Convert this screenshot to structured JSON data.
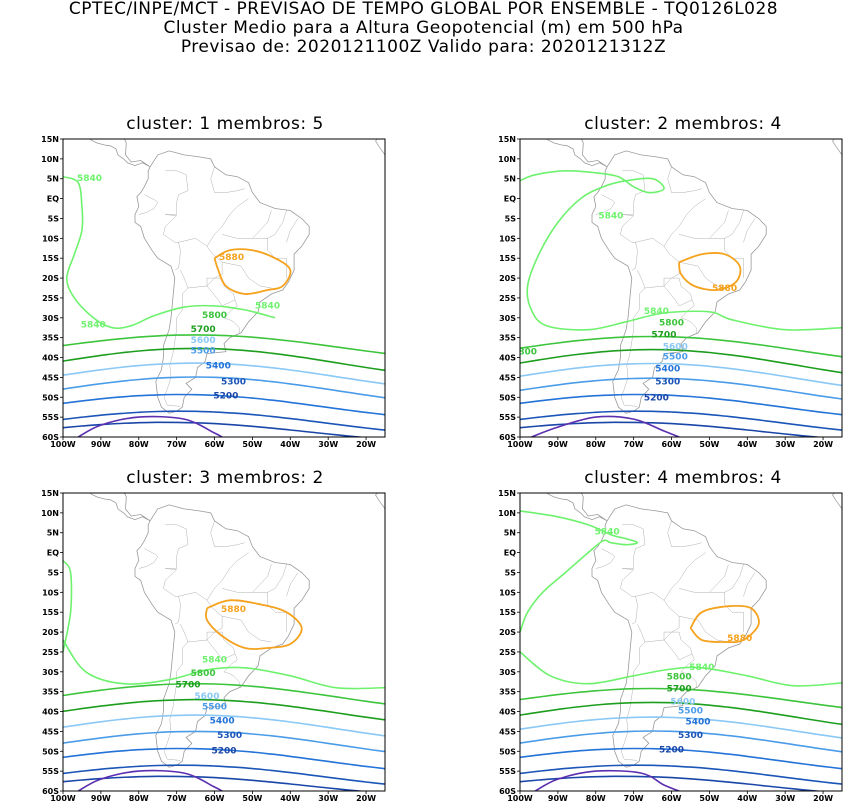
{
  "header": {
    "line1": "CPTEC/INPE/MCT - PREVISAO DE TEMPO GLOBAL POR ENSEMBLE - TQ0126L028",
    "line2": "Cluster Medio para a Altura Geopotencial (m) em 500 hPa",
    "line3": "Previsao de: 2020121100Z   Valido para: 2020121312Z"
  },
  "axes": {
    "lat_labels": [
      "15N",
      "10N",
      "5N",
      "EQ",
      "5S",
      "10S",
      "15S",
      "20S",
      "25S",
      "30S",
      "35S",
      "40S",
      "45S",
      "50S",
      "55S",
      "60S"
    ],
    "lon_labels": [
      "100W",
      "90W",
      "80W",
      "70W",
      "60W",
      "50W",
      "40W",
      "30W",
      "20W"
    ]
  },
  "colors": {
    "c5840": "#6ef26e",
    "c5800": "#3cc43c",
    "c5700": "#1e9e1e",
    "c5600": "#8ac8f5",
    "c5500": "#4b9ce8",
    "c5400": "#2373d8",
    "c5300": "#1b55b8",
    "c5200": "#1a46a8",
    "c5100": "#5b2fb0",
    "c5880": "#f5a21e",
    "land": "#9a9a9a"
  },
  "clusters": [
    {
      "title": "cluster:  1   membros:  5",
      "labels": {
        "l5840a": "5840",
        "l5840b": "5840",
        "l5840c": "5840",
        "l5880": "5880",
        "l5800": "5800",
        "l5700": "5700",
        "l5600": "5600",
        "l5500": "5500",
        "l5400": "5400",
        "l5300": "5300",
        "l5200": "5200"
      }
    },
    {
      "title": "cluster:  2   membros:  4",
      "labels": {
        "l5840a": "5840",
        "l5840b": "5840",
        "l5880": "5880",
        "l5800": "5800",
        "l5700": "5700",
        "l5600": "5600",
        "l5500": "5500",
        "l5400": "5400",
        "l5300": "5300",
        "l5200": "5200",
        "l5800w": "800"
      }
    },
    {
      "title": "cluster:  3   membros:  2",
      "labels": {
        "l5880": "5880",
        "l5840": "5840",
        "l5800": "5800",
        "l5700": "5700",
        "l5600": "5600",
        "l5500": "5500",
        "l5400": "5400",
        "l5300": "5300",
        "l5200": "5200"
      }
    },
    {
      "title": "cluster:  4   membros:  4",
      "labels": {
        "l5840a": "5840",
        "l5840b": "5840",
        "l5880": "5880",
        "l5800": "5800",
        "l5700": "5700",
        "l5600": "5600",
        "l5500": "5500",
        "l5400": "5400",
        "l5300": "5300",
        "l5200": "5200"
      }
    }
  ]
}
